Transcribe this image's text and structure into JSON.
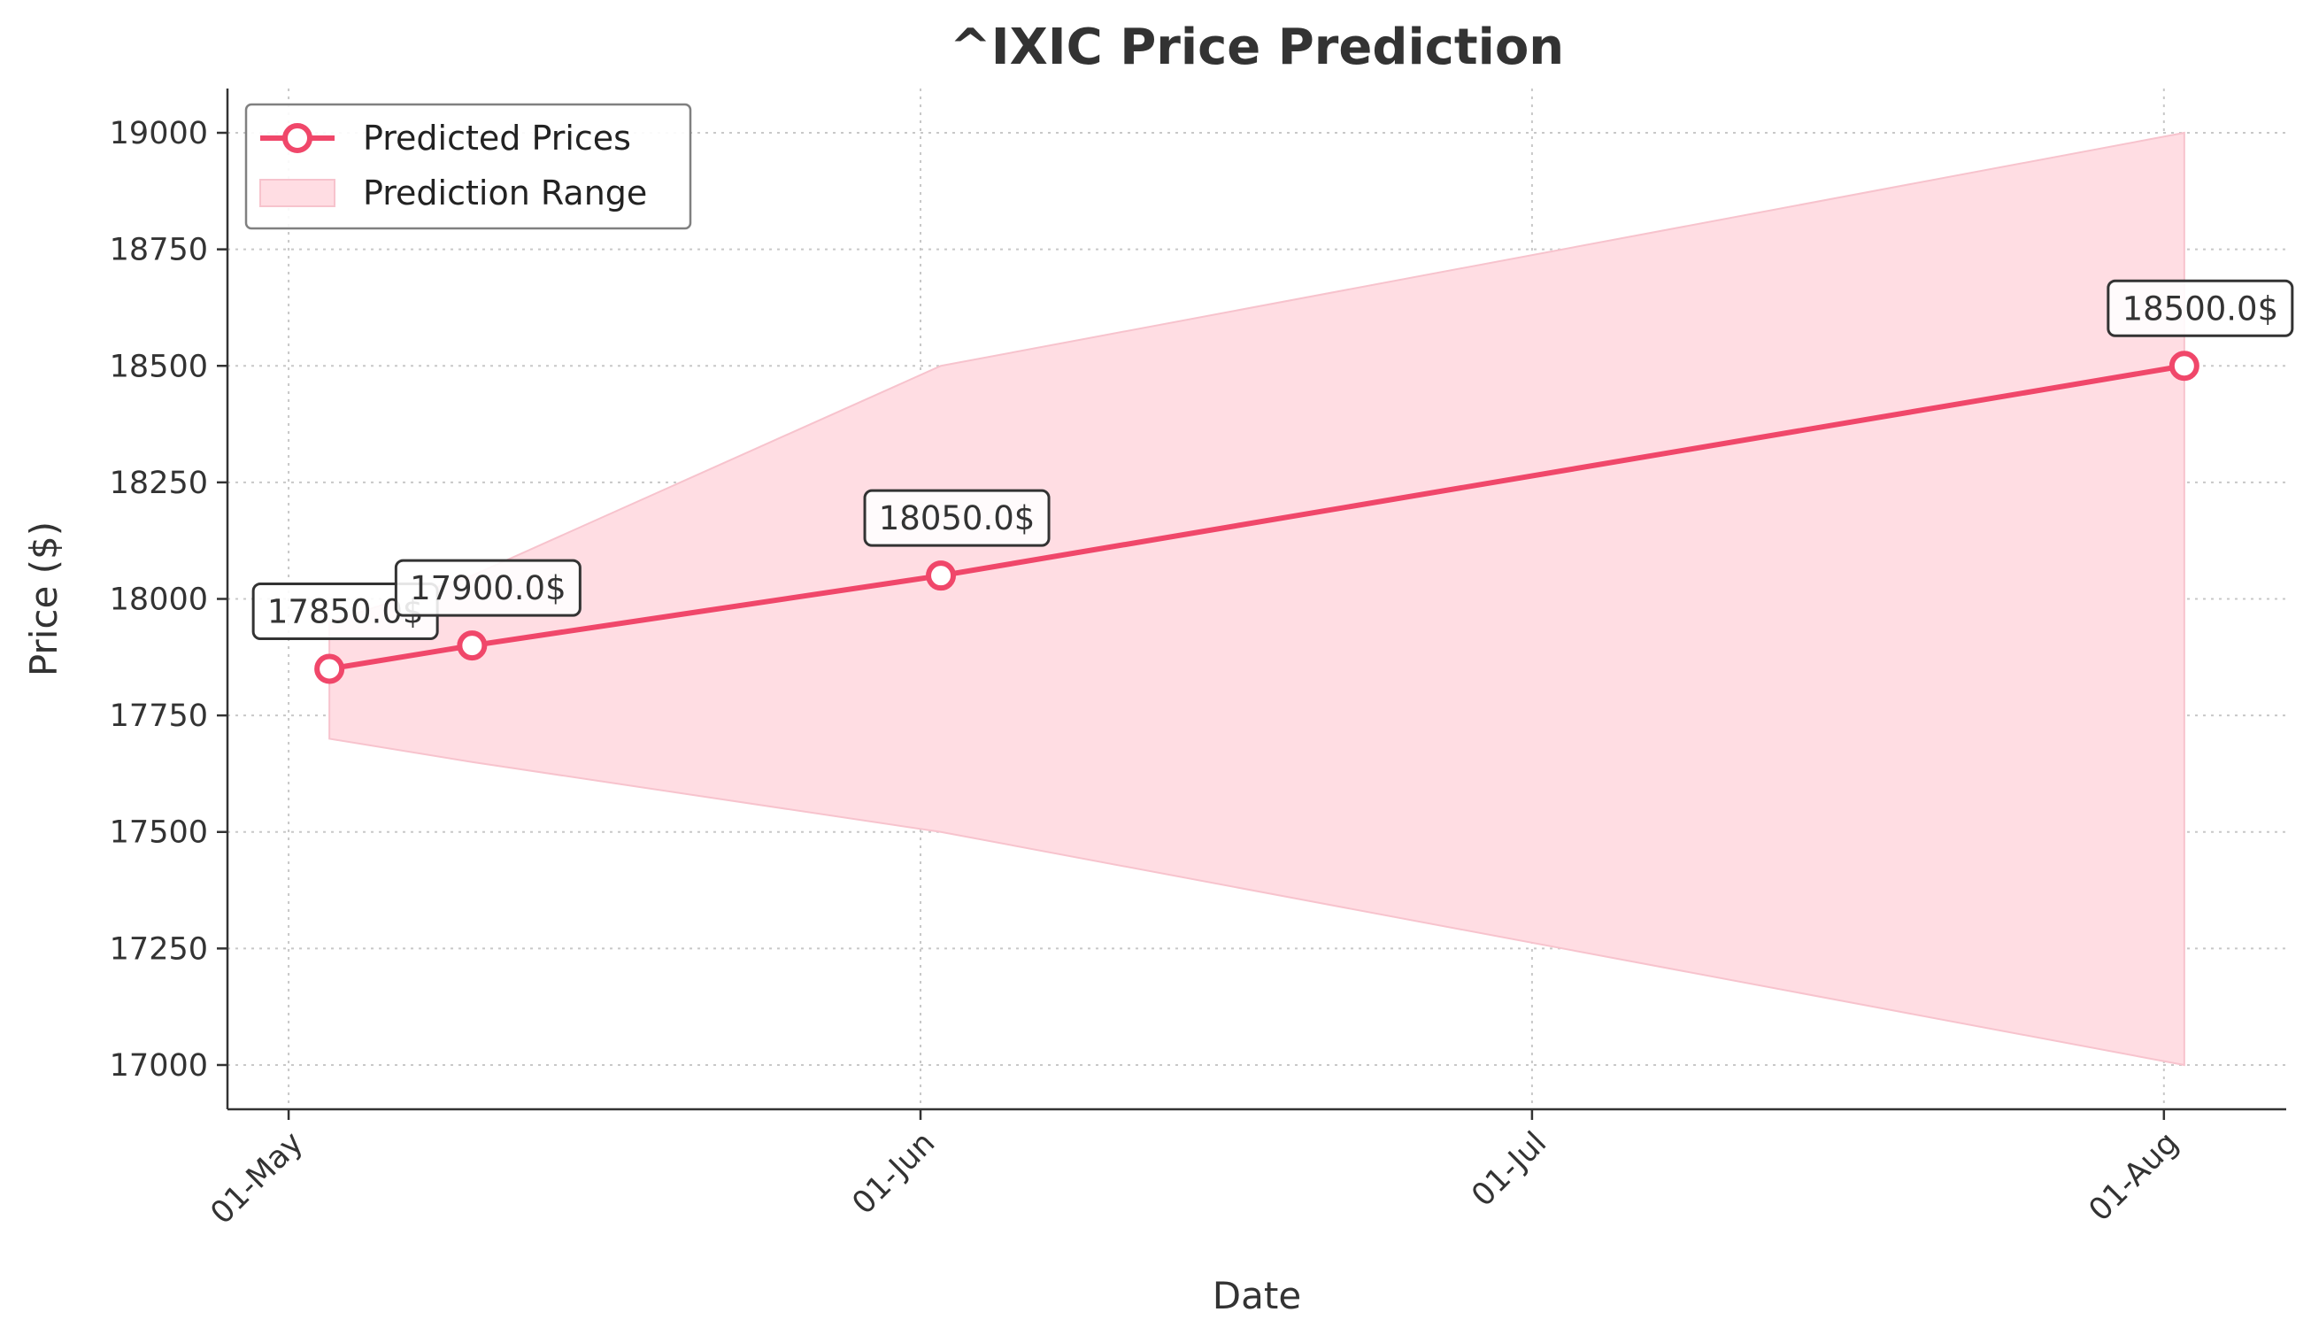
{
  "chart_data": {
    "type": "line",
    "title": "^IXIC Price Prediction",
    "xlabel": "Date",
    "ylabel": "Price ($)",
    "x_ticks": [
      {
        "date": "2024-05-01",
        "label": "01-May"
      },
      {
        "date": "2024-06-01",
        "label": "01-Jun"
      },
      {
        "date": "2024-07-01",
        "label": "01-Jul"
      },
      {
        "date": "2024-08-01",
        "label": "01-Aug"
      }
    ],
    "y_ticks": [
      17000,
      17250,
      17500,
      17750,
      18000,
      18250,
      18500,
      18750,
      19000
    ],
    "xlim": [
      "2024-04-28",
      "2024-08-07"
    ],
    "ylim": [
      16905,
      19095
    ],
    "grid": true,
    "legend_position": "top-left",
    "series": [
      {
        "name": "Predicted Prices",
        "kind": "line-marker",
        "color": "#f0476a",
        "x": [
          "2024-05-03",
          "2024-05-10",
          "2024-06-02",
          "2024-08-02"
        ],
        "y": [
          17850,
          17900,
          18050,
          18500
        ]
      },
      {
        "name": "Prediction Range",
        "kind": "band",
        "color": "#ffdde3",
        "x": [
          "2024-05-03",
          "2024-05-10",
          "2024-06-02",
          "2024-08-02"
        ],
        "lower": [
          17700,
          17650,
          17500,
          17000
        ],
        "upper": [
          17950,
          18050,
          18500,
          19000
        ]
      }
    ],
    "annotations": [
      {
        "x": "2024-05-03",
        "y": 17850,
        "text": "17850.0$"
      },
      {
        "x": "2024-05-10",
        "y": 17900,
        "text": "17900.0$"
      },
      {
        "x": "2024-06-02",
        "y": 18050,
        "text": "18050.0$"
      },
      {
        "x": "2024-08-02",
        "y": 18500,
        "text": "18500.0$"
      }
    ]
  }
}
